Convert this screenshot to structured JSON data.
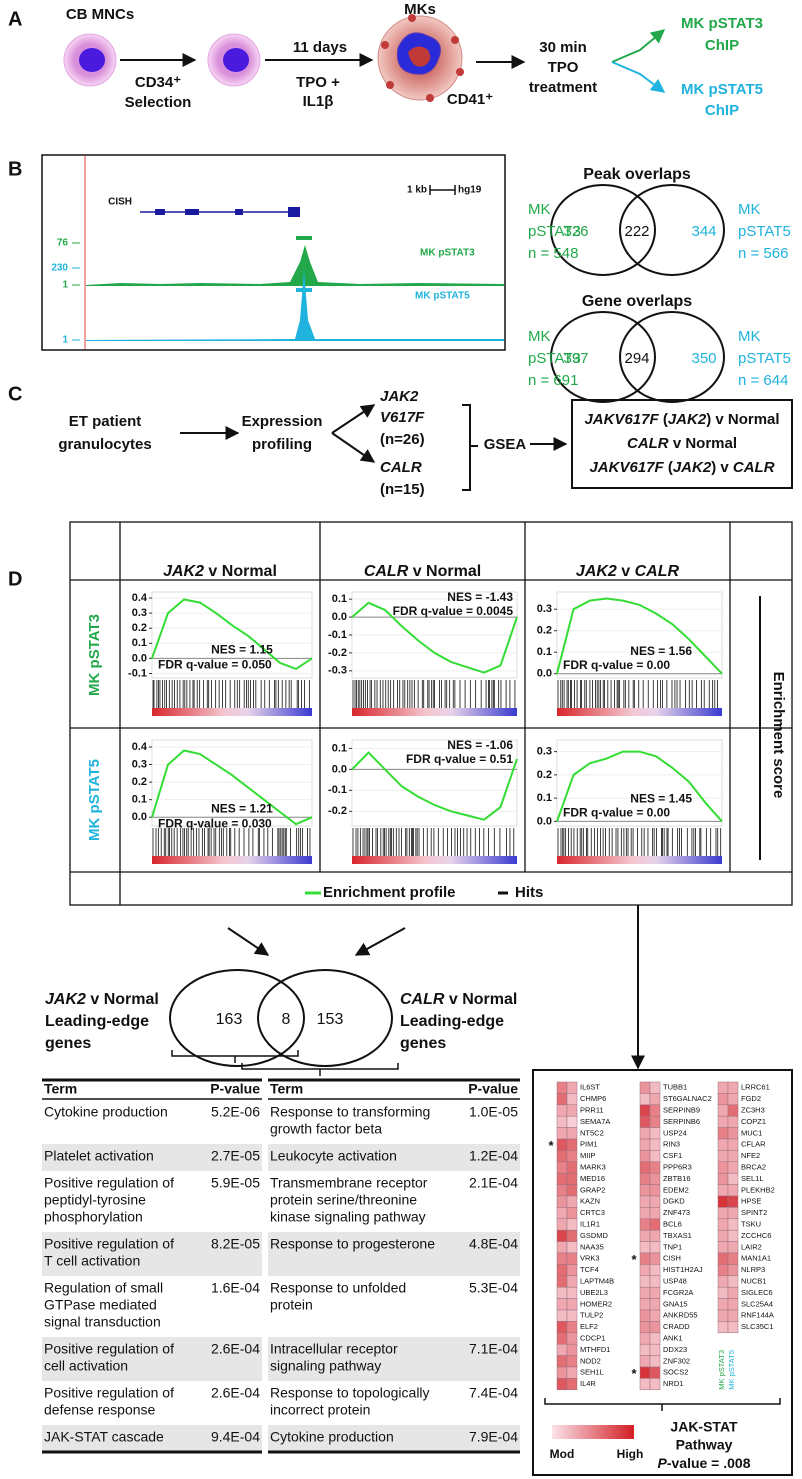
{
  "panelA": {
    "label": "A",
    "cb_mncs": "CB MNCs",
    "cd34": "CD34⁺",
    "selection": "Selection",
    "days": "11 days",
    "tpo": "TPO +",
    "il1b": "IL1β",
    "mks": "MKs",
    "cd41": "CD41⁺",
    "min": "30 min",
    "tpo2": "TPO",
    "treatment": "treatment",
    "stat3": "MK pSTAT3",
    "chip3": "ChIP",
    "stat5": "MK pSTAT5",
    "chip5": "ChIP"
  },
  "panelB": {
    "label": "B",
    "scale": "1 kb",
    "genome": "hg19",
    "gene": "CISH",
    "track3": {
      "max": "76",
      "min": "1",
      "name": "MK pSTAT3"
    },
    "track5": {
      "max": "230",
      "min": "1",
      "name": "MK pSTAT5"
    },
    "venns": [
      {
        "title": "Peak overlaps",
        "left": [
          "MK",
          "pSTAT3",
          "n = 548"
        ],
        "right": [
          "MK",
          "pSTAT5",
          "n = 566"
        ],
        "counts": [
          326,
          222,
          344
        ]
      },
      {
        "title": "Gene overlaps",
        "left": [
          "MK",
          "pSTAT3",
          "n = 691"
        ],
        "right": [
          "MK",
          "pSTAT5",
          "n = 644"
        ],
        "counts": [
          397,
          294,
          350
        ]
      }
    ]
  },
  "panelC": {
    "label": "C",
    "source": [
      "ET patient",
      "granulocytes"
    ],
    "method": [
      "Expression",
      "profiling"
    ],
    "jak2": [
      "JAK2",
      "V617F",
      "(n=26)"
    ],
    "calr": [
      "CALR",
      "(n=15)"
    ],
    "gsea": "GSEA",
    "comparisons": [
      [
        "JAKV617F",
        " (",
        "JAK2",
        ") v Normal"
      ],
      [
        "CALR",
        " v Normal"
      ],
      [
        "JAKV617F",
        " (",
        "JAK2",
        ") v ",
        "CALR"
      ]
    ]
  },
  "panelD": {
    "label": "D",
    "columns": [
      [
        "JAK2",
        " v Normal"
      ],
      [
        "CALR",
        " v Normal"
      ],
      [
        "JAK2",
        " v ",
        "CALR"
      ]
    ],
    "rows": [
      "MK pSTAT3",
      "MK pSTAT5"
    ],
    "y_label": "Enrichment score",
    "plots": [
      [
        {
          "yticks": [
            0.4,
            0.3,
            0.2,
            0.1,
            {
              "value": 0,
              "label": "0.0"
            },
            -0.1
          ],
          "ylim": [
            -0.13,
            0.44
          ],
          "curve": [
            0,
            0.3,
            0.39,
            0.37,
            0.3,
            0.22,
            0.15,
            0.06,
            -0.03,
            -0.07,
            0
          ],
          "nes": "NES = 1.15",
          "fdr": "FDR q-value = 0.050"
        },
        {
          "yticks": [
            0.1,
            {
              "value": 0,
              "label": "0.0"
            },
            -0.1,
            -0.2,
            -0.3
          ],
          "ylim": [
            -0.34,
            0.14
          ],
          "curve": [
            0,
            0.08,
            0.04,
            -0.05,
            -0.13,
            -0.2,
            -0.25,
            -0.28,
            -0.31,
            -0.27,
            0
          ],
          "nes": "NES = -1.43",
          "fdr": "FDR q-value = 0.0045"
        },
        {
          "yticks": [
            0.3,
            0.2,
            0.1,
            {
              "value": 0,
              "label": "0.0"
            }
          ],
          "ylim": [
            -0.02,
            0.38
          ],
          "curve": [
            0,
            0.3,
            0.34,
            0.35,
            0.34,
            0.32,
            0.28,
            0.23,
            0.16,
            0.08,
            0
          ],
          "nes": "NES = 1.56",
          "fdr": "FDR q-value = 0.00"
        }
      ],
      [
        {
          "yticks": [
            0.4,
            0.3,
            0.2,
            0.1,
            {
              "value": 0,
              "label": "0.0"
            }
          ],
          "ylim": [
            -0.05,
            0.44
          ],
          "curve": [
            0,
            0.3,
            0.38,
            0.36,
            0.3,
            0.24,
            0.17,
            0.1,
            0.03,
            -0.04,
            0
          ],
          "nes": "NES = 1.21",
          "fdr": "FDR q-value = 0.030"
        },
        {
          "yticks": [
            0.1,
            {
              "value": 0,
              "label": "0.0"
            },
            -0.1,
            -0.2
          ],
          "ylim": [
            -0.27,
            0.14
          ],
          "curve": [
            0,
            0.08,
            0,
            -0.08,
            -0.13,
            -0.17,
            -0.2,
            -0.22,
            -0.24,
            -0.18,
            0.05
          ],
          "nes": "NES = -1.06",
          "fdr": "FDR q-value = 0.51"
        },
        {
          "yticks": [
            0.3,
            0.2,
            0.1,
            {
              "value": 0,
              "label": "0.0"
            }
          ],
          "ylim": [
            -0.02,
            0.35
          ],
          "curve": [
            0,
            0.2,
            0.25,
            0.27,
            0.3,
            0.3,
            0.28,
            0.23,
            0.17,
            0.08,
            0
          ],
          "nes": "NES = 1.45",
          "fdr": "FDR q-value = 0.00"
        }
      ]
    ],
    "legend": [
      "Enrichment profile",
      "Hits"
    ],
    "profile_color": "#33dd33"
  },
  "venn": {
    "left": [
      [
        "JAK2",
        " v Normal"
      ],
      "Leading-edge",
      "genes"
    ],
    "right": [
      [
        "CALR",
        " v Normal"
      ],
      "Leading-edge",
      "genes"
    ],
    "counts": [
      163,
      8,
      153
    ]
  },
  "tables": [
    {
      "header": [
        "Term",
        "P-value"
      ],
      "rows": [
        [
          [
            "Cytokine production"
          ],
          "5.2E-06"
        ],
        [
          [
            "Platelet activation"
          ],
          "2.7E-05"
        ],
        [
          [
            "Positive regulation of",
            "peptidyl-tyrosine",
            "phosphorylation"
          ],
          "5.9E-05"
        ],
        [
          [
            "Positive regulation of",
            "T cell activation"
          ],
          "8.2E-05"
        ],
        [
          [
            "Regulation of small",
            "GTPase mediated",
            "signal transduction"
          ],
          "1.6E-04"
        ],
        [
          [
            "Positive regulation of",
            "cell activation"
          ],
          "2.6E-04"
        ],
        [
          [
            "Positive regulation of",
            "defense response"
          ],
          "2.6E-04"
        ],
        [
          [
            "JAK-STAT cascade"
          ],
          "9.4E-04"
        ]
      ]
    },
    {
      "header": [
        "Term",
        "P-value"
      ],
      "rows": [
        [
          [
            "Response to transforming",
            "growth factor beta"
          ],
          "1.0E-05"
        ],
        [
          [
            "Leukocyte activation"
          ],
          "1.2E-04"
        ],
        [
          [
            "Transmembrane receptor",
            "protein serine/threonine",
            "kinase signaling pathway"
          ],
          "2.1E-04"
        ],
        [
          [
            "Response to progesterone"
          ],
          "4.8E-04"
        ],
        [
          [
            "Response to unfolded",
            "protein"
          ],
          "5.3E-04"
        ],
        [
          [
            "Intracellular receptor",
            "signaling pathway"
          ],
          "7.1E-04"
        ],
        [
          [
            "Response to topologically",
            "incorrect protein"
          ],
          "7.4E-04"
        ],
        [
          [
            "Cytokine production"
          ],
          "7.9E-04"
        ]
      ]
    }
  ],
  "heatmap": {
    "columns": [
      {
        "genes": [
          "IL6ST",
          "CHMP6",
          "PRR11",
          "SEMA7A",
          "NT5C2",
          "PIM1",
          "MIIP",
          "MARK3",
          "MED16",
          "GRAP2",
          "KAZN",
          "CRTC3",
          "IL1R1",
          "GSDMD",
          "NAA35",
          "VRK3",
          "TCF4",
          "LAPTM4B",
          "UBE2L3",
          "HOMER2",
          "TULP2",
          "ELF2",
          "CDCP1",
          "MTHFD1",
          "NOD2",
          "SEH1L",
          "IL4R"
        ],
        "levels": [
          [
            0.5,
            0.3
          ],
          [
            0.6,
            0.2
          ],
          [
            0.3,
            0.3
          ],
          [
            0.2,
            0.1
          ],
          [
            0.3,
            0.3
          ],
          [
            0.7,
            0.6
          ],
          [
            0.6,
            0.5
          ],
          [
            0.5,
            0.6
          ],
          [
            0.6,
            0.6
          ],
          [
            0.5,
            0.6
          ],
          [
            0.4,
            0.3
          ],
          [
            0.3,
            0.4
          ],
          [
            0.3,
            0.2
          ],
          [
            0.8,
            0.6
          ],
          [
            0.3,
            0.2
          ],
          [
            0.5,
            0.5
          ],
          [
            0.6,
            0.4
          ],
          [
            0.6,
            0.3
          ],
          [
            0.2,
            0.2
          ],
          [
            0.3,
            0.3
          ],
          [
            0.2,
            0.2
          ],
          [
            0.7,
            0.5
          ],
          [
            0.6,
            0.4
          ],
          [
            0.3,
            0.4
          ],
          [
            0.6,
            0.5
          ],
          [
            0.4,
            0.3
          ],
          [
            0.7,
            0.6
          ]
        ],
        "stars": [
          {
            "text": "*",
            "row": 5
          }
        ]
      },
      {
        "genes": [
          "TUBB1",
          "ST6GALNAC2",
          "SERPINB9",
          "SERPINB6",
          "USP24",
          "RIN3",
          "CSF1",
          "PPP6R3",
          "ZBTB16",
          "EDEM2",
          "DGKD",
          "ZNF473",
          "BCL6",
          "TBXAS1",
          "TNP1",
          "CISH",
          "HIST1H2AJ",
          "USP48",
          "FCGR2A",
          "GNA15",
          "ANKRD55",
          "CRADD",
          "ANK1",
          "DDX23",
          "ZNF302",
          "SOCS2",
          "NRD1"
        ],
        "levels": [
          [
            0.4,
            0.2
          ],
          [
            0.2,
            0.3
          ],
          [
            0.8,
            0.5
          ],
          [
            0.7,
            0.5
          ],
          [
            0.3,
            0.2
          ],
          [
            0.3,
            0.2
          ],
          [
            0.4,
            0.2
          ],
          [
            0.6,
            0.5
          ],
          [
            0.5,
            0.4
          ],
          [
            0.4,
            0.4
          ],
          [
            0.3,
            0.3
          ],
          [
            0.3,
            0.3
          ],
          [
            0.5,
            0.6
          ],
          [
            0.3,
            0.3
          ],
          [
            0.2,
            0.2
          ],
          [
            0.5,
            0.4
          ],
          [
            0.3,
            0.2
          ],
          [
            0.2,
            0.2
          ],
          [
            0.3,
            0.3
          ],
          [
            0.3,
            0.3
          ],
          [
            0.4,
            0.3
          ],
          [
            0.4,
            0.4
          ],
          [
            0.3,
            0.2
          ],
          [
            0.2,
            0.2
          ],
          [
            0.3,
            0.2
          ],
          [
            0.9,
            0.7
          ],
          [
            0.2,
            0.2
          ]
        ],
        "stars": [
          {
            "text": "*",
            "row": 15
          },
          {
            "text": "*",
            "row": 25
          }
        ]
      },
      {
        "genes": [
          "LRRC61",
          "FGD2",
          "ZC3H3",
          "COPZ1",
          "MUC1",
          "CFLAR",
          "NFE2",
          "BRCA2",
          "SEL1L",
          "PLEKHB2",
          "HPSE",
          "SPINT2",
          "TSKU",
          "ZCCHC6",
          "LAIR2",
          "MAN1A1",
          "NLRP3",
          "NUCB1",
          "SIGLEC6",
          "SLC25A4",
          "RNF144A",
          "SLC35C1"
        ],
        "levels": [
          [
            0.3,
            0.3
          ],
          [
            0.4,
            0.3
          ],
          [
            0.3,
            0.6
          ],
          [
            0.3,
            0.3
          ],
          [
            0.5,
            0.4
          ],
          [
            0.3,
            0.3
          ],
          [
            0.3,
            0.3
          ],
          [
            0.4,
            0.3
          ],
          [
            0.4,
            0.2
          ],
          [
            0.3,
            0.3
          ],
          [
            0.9,
            0.8
          ],
          [
            0.3,
            0.3
          ],
          [
            0.3,
            0.2
          ],
          [
            0.3,
            0.2
          ],
          [
            0.3,
            0.3
          ],
          [
            0.6,
            0.5
          ],
          [
            0.5,
            0.4
          ],
          [
            0.3,
            0.2
          ],
          [
            0.2,
            0.3
          ],
          [
            0.3,
            0.3
          ],
          [
            0.3,
            0.3
          ],
          [
            0.2,
            0.2
          ]
        ],
        "stars": []
      }
    ],
    "sample_labels": [
      "MK pSTAT3",
      "MK pSTAT5"
    ],
    "scale": [
      "Mod",
      "High"
    ],
    "title": [
      "JAK-STAT",
      "Pathway"
    ],
    "pvalue": [
      "P",
      "-value = .008"
    ]
  }
}
